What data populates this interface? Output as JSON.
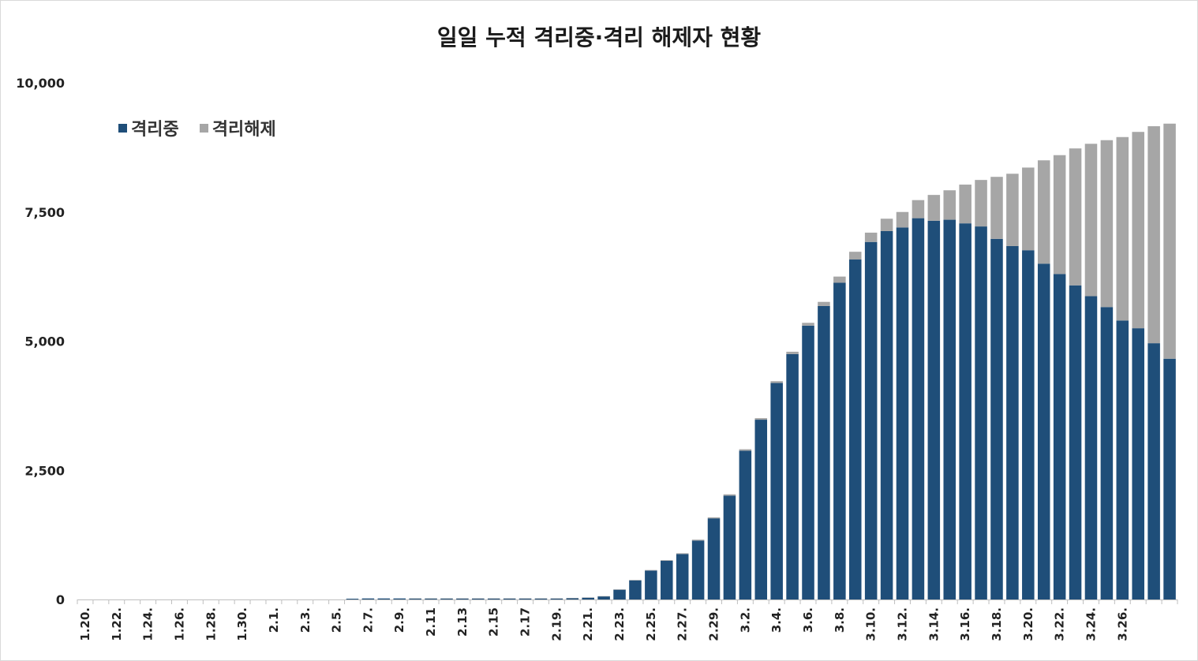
{
  "chart_data": {
    "type": "bar",
    "stacked": true,
    "title": "일일 누적 격리중·격리 해제자 현황",
    "ylim": [
      0,
      10000
    ],
    "yticks": [
      "0",
      "2,500",
      "5,000",
      "7,500",
      "10,000"
    ],
    "grid": false,
    "legend_position": "top-left",
    "x_tick_labels": [
      "1.20.",
      "1.22.",
      "1.24.",
      "1.26.",
      "1.28.",
      "1.30.",
      "2.1.",
      "2.3.",
      "2.5.",
      "2.7.",
      "2.9.",
      "2.11",
      "2.13",
      "2.15",
      "2.17",
      "2.19.",
      "2.21.",
      "2.23.",
      "2.25.",
      "2.27.",
      "2.29.",
      "3.2.",
      "3.4.",
      "3.6.",
      "3.8.",
      "3.10.",
      "3.12.",
      "3.14.",
      "3.16.",
      "3.18.",
      "3.20.",
      "3.22.",
      "3.24.",
      "3.26."
    ],
    "series": [
      {
        "name": "격리중",
        "color": "#1f4e79",
        "values": [
          0,
          0,
          0,
          0,
          0,
          0,
          0,
          0,
          0,
          0,
          0,
          0,
          0,
          0,
          0,
          0,
          0,
          15,
          20,
          20,
          20,
          20,
          20,
          20,
          20,
          20,
          20,
          20,
          20,
          20,
          20,
          25,
          35,
          60,
          190,
          370,
          560,
          750,
          880,
          1140,
          1570,
          2010,
          2880,
          3480,
          4190,
          4750,
          5300,
          5680,
          6130,
          6580,
          6920,
          7130,
          7200,
          7380,
          7330,
          7350,
          7280,
          7220,
          6980,
          6840,
          6760,
          6500,
          6300,
          6080,
          5870,
          5660,
          5400,
          5250,
          4960,
          4660
        ]
      },
      {
        "name": "격리해제",
        "color": "#a6a6a6",
        "values": [
          0,
          0,
          0,
          0,
          0,
          0,
          0,
          0,
          0,
          0,
          0,
          0,
          0,
          0,
          0,
          0,
          0,
          0,
          0,
          0,
          0,
          2,
          2,
          2,
          3,
          3,
          3,
          3,
          3,
          3,
          3,
          4,
          5,
          5,
          5,
          8,
          10,
          12,
          15,
          18,
          20,
          25,
          27,
          30,
          35,
          45,
          55,
          80,
          120,
          150,
          180,
          240,
          300,
          350,
          500,
          570,
          750,
          900,
          1200,
          1400,
          1600,
          2000,
          2300,
          2650,
          2950,
          3230,
          3550,
          3800,
          4200,
          4550
        ]
      }
    ]
  }
}
